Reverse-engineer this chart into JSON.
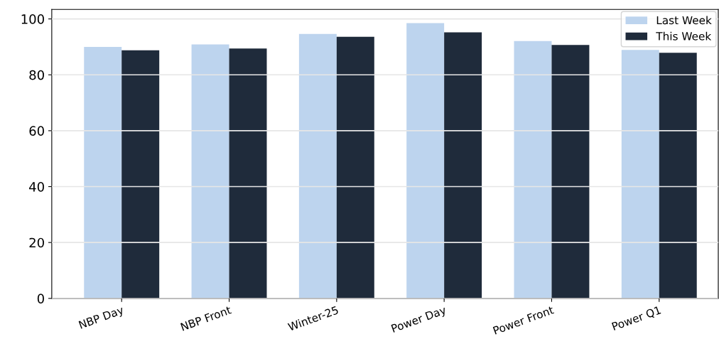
{
  "chart_data": {
    "type": "bar",
    "categories": [
      "NBP Day",
      "NBP Front",
      "Winter-25",
      "Power Day",
      "Power Front",
      "Power Q1"
    ],
    "series": [
      {
        "name": "Last Week",
        "color": "#bdd4ee",
        "values": [
          90.0,
          90.9,
          94.6,
          98.5,
          92.1,
          88.9
        ]
      },
      {
        "name": "This Week",
        "color": "#1f2b3b",
        "values": [
          88.8,
          89.4,
          93.6,
          95.2,
          90.7,
          87.9
        ]
      }
    ],
    "ylim": [
      0,
      103.4
    ],
    "yticks": [
      0,
      20,
      40,
      60,
      80,
      100
    ],
    "grid": "y",
    "legend": "top right"
  }
}
